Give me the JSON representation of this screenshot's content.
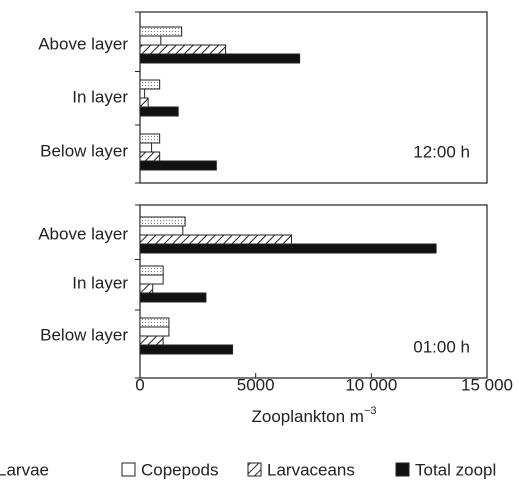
{
  "chart_data": {
    "type": "hbar",
    "categories": [
      "Above layer",
      "In layer",
      "Below layer"
    ],
    "series": [
      {
        "name": "Larvae",
        "color": "#ffffff",
        "pattern": "dots"
      },
      {
        "name": "Copepods",
        "color": "#ffffff",
        "pattern": "none"
      },
      {
        "name": "Larvaceans",
        "color": "#ffffff",
        "pattern": "hatch"
      },
      {
        "name": "Total zoopl",
        "color": "#111111",
        "pattern": "none"
      }
    ],
    "panels": [
      {
        "label": "12:00 h",
        "values": [
          [
            1800,
            850,
            850
          ],
          [
            900,
            200,
            500
          ],
          [
            3700,
            350,
            850
          ],
          [
            6900,
            1650,
            3300
          ]
        ]
      },
      {
        "label": "01:00 h",
        "values": [
          [
            1950,
            1000,
            1250
          ],
          [
            1850,
            1000,
            1250
          ],
          [
            6550,
            550,
            1000
          ],
          [
            12800,
            2850,
            4000
          ]
        ]
      }
    ],
    "xlim": [
      0,
      15000
    ],
    "xticks": [
      0,
      5000,
      {
        "value": 10000,
        "label": "10 000"
      },
      {
        "value": 15000,
        "label": "15 000"
      }
    ],
    "x_label": "Zooplankton m",
    "x_label_sup": "−3"
  }
}
